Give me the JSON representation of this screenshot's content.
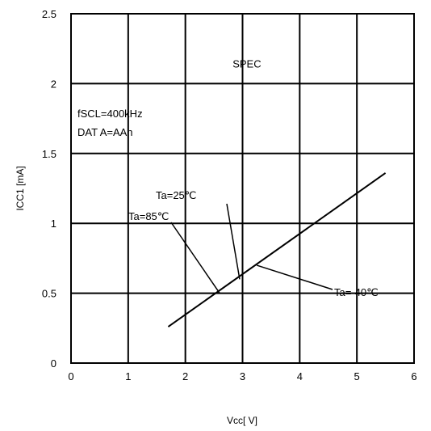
{
  "chart_data": {
    "type": "line",
    "xlabel": "Vcc[ V]",
    "ylabel": "ICC1 [mA]",
    "xlim": [
      0,
      6
    ],
    "ylim": [
      0,
      2.5
    ],
    "x_ticks": [
      "0",
      "1",
      "2",
      "3",
      "4",
      "5",
      "6"
    ],
    "y_ticks": [
      "0",
      "0.5",
      "1",
      "1.5",
      "2",
      "2.5"
    ],
    "grid": true,
    "spec_limit": {
      "label": "SPEC",
      "y": 2.0
    },
    "conditions": [
      "fSCL=400kHz",
      "DAT A=AAh"
    ],
    "series": [
      {
        "x": [
          1.7,
          5.5
        ],
        "values": [
          0.26,
          1.36
        ]
      }
    ],
    "annotations": [
      {
        "label": "Ta=85℃",
        "point": [
          2.6,
          0.5
        ]
      },
      {
        "label": "Ta=25℃",
        "point": [
          2.95,
          0.6
        ]
      },
      {
        "label": "Ta=-40℃",
        "point": [
          3.25,
          0.7
        ]
      }
    ]
  }
}
